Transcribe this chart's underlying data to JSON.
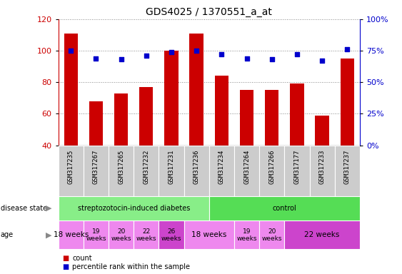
{
  "title": "GDS4025 / 1370551_a_at",
  "samples": [
    "GSM317235",
    "GSM317267",
    "GSM317265",
    "GSM317232",
    "GSM317231",
    "GSM317236",
    "GSM317234",
    "GSM317264",
    "GSM317266",
    "GSM317177",
    "GSM317233",
    "GSM317237"
  ],
  "counts": [
    111,
    68,
    73,
    77,
    100,
    111,
    84,
    75,
    75,
    79,
    59,
    95
  ],
  "percentiles": [
    75,
    69,
    68,
    71,
    74,
    75,
    72,
    69,
    68,
    72,
    67,
    76
  ],
  "ylim_left": [
    40,
    120
  ],
  "ylim_right": [
    0,
    100
  ],
  "yticks_left": [
    40,
    60,
    80,
    100,
    120
  ],
  "yticks_right": [
    0,
    25,
    50,
    75,
    100
  ],
  "bar_color": "#cc0000",
  "dot_color": "#0000cc",
  "disease_state_groups": [
    {
      "label": "streptozotocin-induced diabetes",
      "start": 0,
      "end": 6,
      "color": "#88ee88"
    },
    {
      "label": "control",
      "start": 6,
      "end": 12,
      "color": "#55dd55"
    }
  ],
  "age_groups": [
    {
      "label": "18 weeks",
      "start": 0,
      "end": 1,
      "color": "#ee88ee",
      "fontsize": 7.5
    },
    {
      "label": "19\nweeks",
      "start": 1,
      "end": 2,
      "color": "#ee88ee",
      "fontsize": 6.5
    },
    {
      "label": "20\nweeks",
      "start": 2,
      "end": 3,
      "color": "#ee88ee",
      "fontsize": 6.5
    },
    {
      "label": "22\nweeks",
      "start": 3,
      "end": 4,
      "color": "#ee88ee",
      "fontsize": 6.5
    },
    {
      "label": "26\nweeks",
      "start": 4,
      "end": 5,
      "color": "#cc44cc",
      "fontsize": 6.5
    },
    {
      "label": "18 weeks",
      "start": 5,
      "end": 7,
      "color": "#ee88ee",
      "fontsize": 7.5
    },
    {
      "label": "19\nweeks",
      "start": 7,
      "end": 8,
      "color": "#ee88ee",
      "fontsize": 6.5
    },
    {
      "label": "20\nweeks",
      "start": 8,
      "end": 9,
      "color": "#ee88ee",
      "fontsize": 6.5
    },
    {
      "label": "22 weeks",
      "start": 9,
      "end": 12,
      "color": "#cc44cc",
      "fontsize": 7.5
    }
  ],
  "sample_col_color": "#cccccc",
  "grid_color": "#888888",
  "background_color": "#ffffff",
  "title_fontsize": 10,
  "tick_fontsize": 8,
  "label_fontsize": 7,
  "sample_fontsize": 6.5
}
